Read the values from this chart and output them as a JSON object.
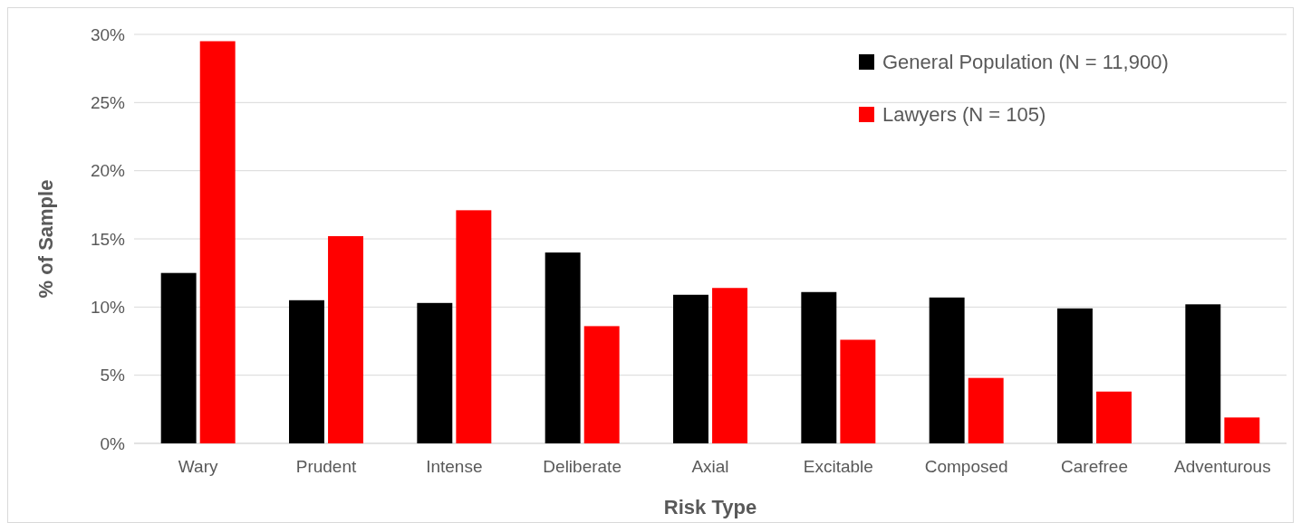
{
  "chart_data": {
    "type": "bar",
    "xlabel": "Risk Type",
    "ylabel": "% of Sample",
    "categories": [
      "Wary",
      "Prudent",
      "Intense",
      "Deliberate",
      "Axial",
      "Excitable",
      "Composed",
      "Carefree",
      "Adventurous"
    ],
    "series": [
      {
        "name": "General Population (N = 11,900)",
        "color": "#000000",
        "values": [
          12.5,
          10.5,
          10.3,
          14.0,
          10.9,
          11.1,
          10.7,
          9.9,
          10.2
        ]
      },
      {
        "name": "Lawyers (N = 105)",
        "color": "#ff0000",
        "values": [
          29.5,
          15.2,
          17.1,
          8.6,
          11.4,
          7.6,
          4.8,
          3.8,
          1.9
        ]
      }
    ],
    "ylim": [
      0,
      30
    ],
    "yticks": [
      {
        "value": 0,
        "label": "0%"
      },
      {
        "value": 5,
        "label": "5%"
      },
      {
        "value": 10,
        "label": "10%"
      },
      {
        "value": 15,
        "label": "15%"
      },
      {
        "value": 20,
        "label": "20%"
      },
      {
        "value": 25,
        "label": "25%"
      },
      {
        "value": 30,
        "label": "30%"
      }
    ],
    "grid": "y",
    "legend": "top right"
  }
}
